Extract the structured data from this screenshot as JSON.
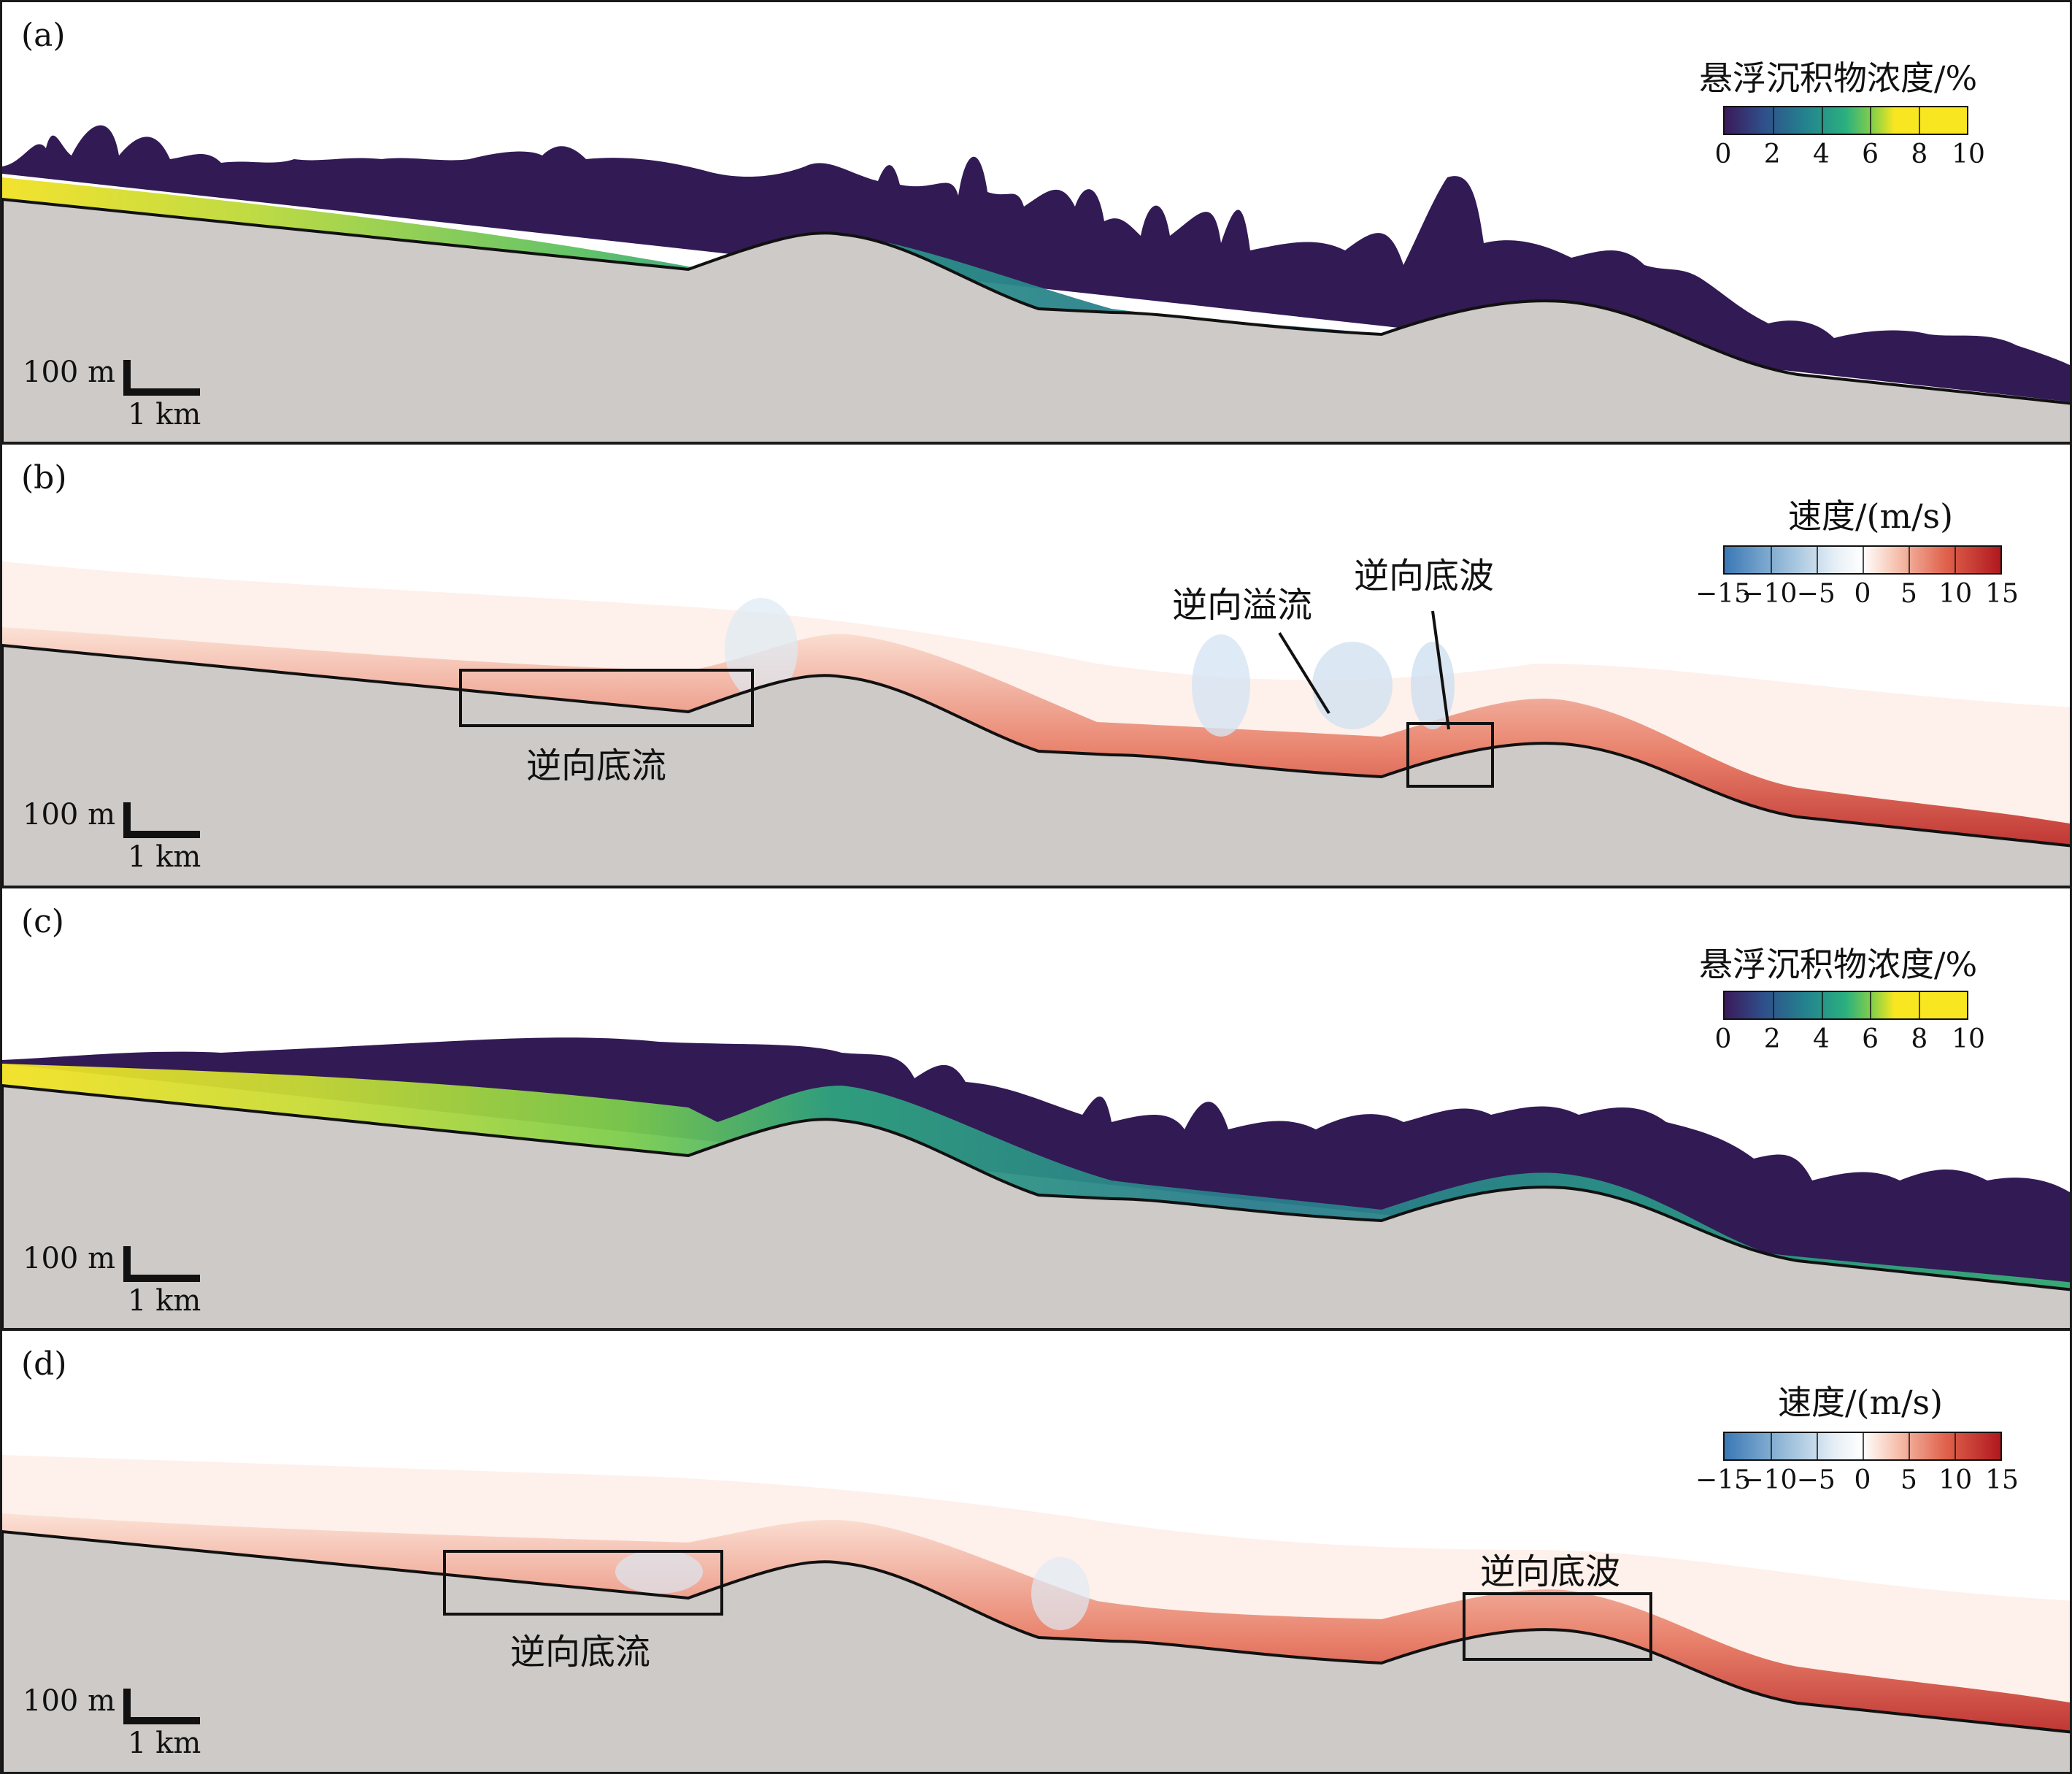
{
  "panels": [
    {
      "label": "(a)",
      "kind": "concentration",
      "colorbar": {
        "title": "悬浮沉积物浓度/%",
        "ticks": [
          "0",
          "2",
          "4",
          "6",
          "8",
          "10"
        ]
      },
      "scale": {
        "vertical": "100 m",
        "horizontal": "1 km"
      }
    },
    {
      "label": "(b)",
      "kind": "velocity",
      "colorbar": {
        "title": "速度/(m/s)",
        "ticks": [
          "−15",
          "−10",
          "−5",
          "0",
          "5",
          "10",
          "15"
        ]
      },
      "scale": {
        "vertical": "100 m",
        "horizontal": "1 km"
      },
      "annotations": {
        "reverse_underflow": "逆向底流",
        "reverse_overflow": "逆向溢流",
        "reverse_bedwave": "逆向底波"
      }
    },
    {
      "label": "(c)",
      "kind": "concentration",
      "colorbar": {
        "title": "悬浮沉积物浓度/%",
        "ticks": [
          "0",
          "2",
          "4",
          "6",
          "8",
          "10"
        ]
      },
      "scale": {
        "vertical": "100 m",
        "horizontal": "1 km"
      }
    },
    {
      "label": "(d)",
      "kind": "velocity",
      "colorbar": {
        "title": "速度/(m/s)",
        "ticks": [
          "−15",
          "−10",
          "−5",
          "0",
          "5",
          "10",
          "15"
        ]
      },
      "scale": {
        "vertical": "100 m",
        "horizontal": "1 km"
      },
      "annotations": {
        "reverse_underflow": "逆向底流",
        "reverse_bedwave": "逆向底波"
      }
    }
  ],
  "colors": {
    "seabed": "#cdcac8",
    "viridis": [
      "#3b1a5a",
      "#2f4f8a",
      "#24818e",
      "#2ab07f",
      "#8fd244",
      "#f8e621"
    ],
    "velocity_neg": "#3a78b5",
    "velocity_pos": "#b0191e",
    "outline": "#111111"
  }
}
